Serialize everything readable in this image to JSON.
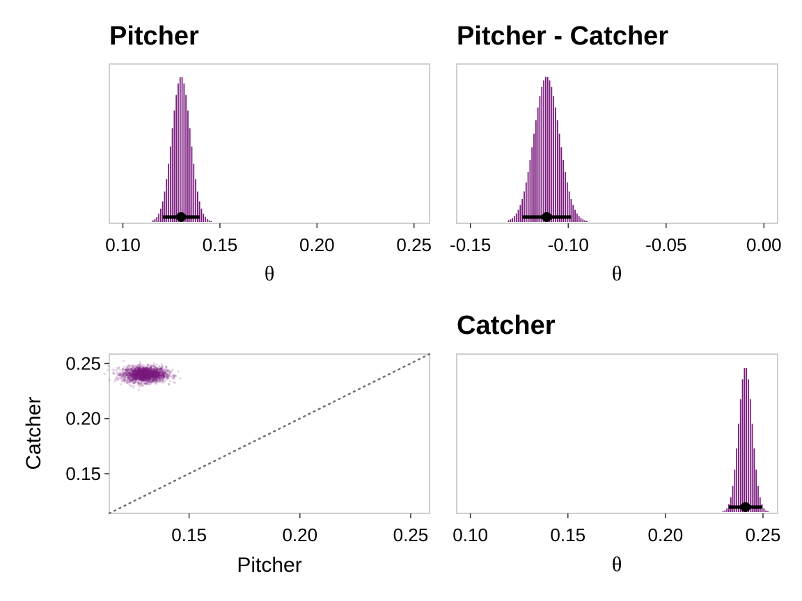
{
  "colors": {
    "bar": "#7a1a7e",
    "point": "#7a1a7e",
    "interval": "#000000",
    "frame": "#cfcfcf",
    "reference_line": "#707070"
  },
  "chart_data": [
    {
      "type": "bar",
      "title": "Pitcher",
      "xlabel": "θ",
      "xlim": [
        0.093,
        0.258
      ],
      "x_ticks": [
        "0.10",
        "0.15",
        "0.20",
        "0.25"
      ],
      "x_tick_values": [
        0.1,
        0.15,
        0.2,
        0.25
      ],
      "distribution": {
        "center": 0.13,
        "sd": 0.0048,
        "bin_width": 0.001,
        "range": [
          0.115,
          0.146
        ]
      },
      "point_estimate": 0.13,
      "interval": [
        0.1205,
        0.1395
      ]
    },
    {
      "type": "bar",
      "title": "Pitcher - Catcher",
      "xlabel": "θ",
      "xlim": [
        -0.157,
        0.007
      ],
      "x_ticks": [
        "-0.15",
        "-0.10",
        "-0.05",
        "0.00"
      ],
      "x_tick_values": [
        -0.15,
        -0.1,
        -0.05,
        0.0
      ],
      "distribution": {
        "center": -0.111,
        "sd": 0.0065,
        "bin_width": 0.001,
        "range": [
          -0.131,
          -0.09
        ]
      },
      "point_estimate": -0.111,
      "interval": [
        -0.1235,
        -0.0985
      ]
    },
    {
      "type": "scatter",
      "title": "",
      "xlabel": "Pitcher",
      "ylabel": "Catcher",
      "xlim": [
        0.114,
        0.2585
      ],
      "ylim": [
        0.114,
        0.2585
      ],
      "x_ticks": [
        "0.15",
        "0.20",
        "0.25"
      ],
      "x_tick_values": [
        0.15,
        0.2,
        0.25
      ],
      "y_ticks": [
        "0.25",
        "0.20",
        "0.15"
      ],
      "y_tick_values": [
        0.25,
        0.2,
        0.15
      ],
      "cloud": {
        "x_center": 0.13,
        "x_sd": 0.0048,
        "y_center": 0.24,
        "y_sd": 0.0035
      },
      "reference_line": "y = x (dotted)"
    },
    {
      "type": "bar",
      "title": "Catcher",
      "xlabel": "θ",
      "xlim": [
        0.093,
        0.2575
      ],
      "x_ticks": [
        "0.10",
        "0.15",
        "0.20",
        "0.25"
      ],
      "x_tick_values": [
        0.1,
        0.15,
        0.2,
        0.25
      ],
      "distribution": {
        "center": 0.241,
        "sd": 0.0035,
        "bin_width": 0.001,
        "range": [
          0.228,
          0.254
        ]
      },
      "point_estimate": 0.241,
      "interval": [
        0.2325,
        0.2495
      ]
    }
  ]
}
